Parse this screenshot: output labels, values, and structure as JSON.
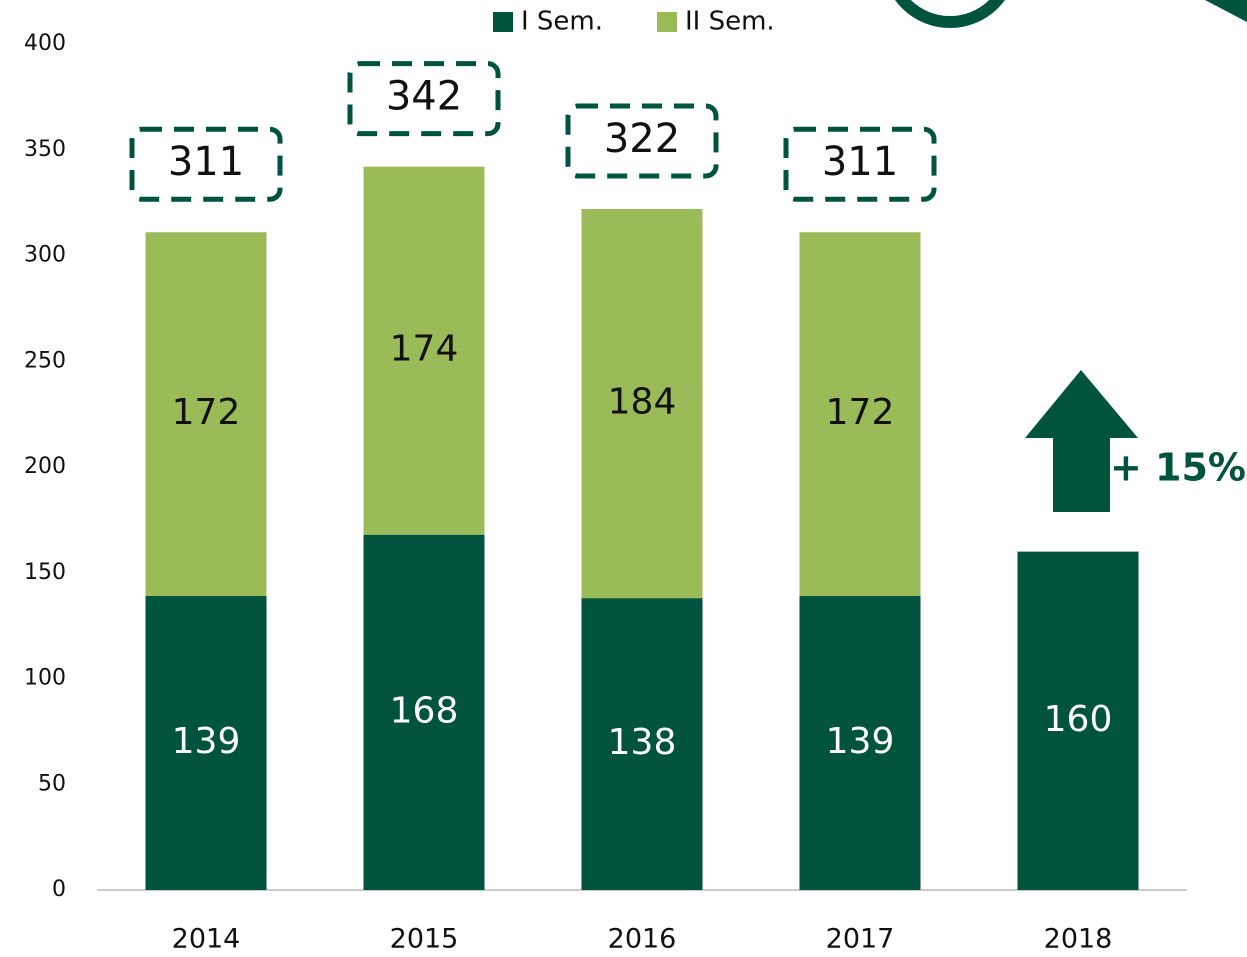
{
  "chart_data": {
    "type": "stacked_bar",
    "categories": [
      "2014",
      "2015",
      "2016",
      "2017",
      "2018"
    ],
    "series": [
      {
        "name": "I Sem.",
        "color": "#00533c",
        "values": [
          139,
          168,
          138,
          139,
          160
        ]
      },
      {
        "name": "II Sem.",
        "color": "#9bbb59",
        "values": [
          172,
          174,
          184,
          172,
          null
        ]
      }
    ],
    "totals": [
      311,
      342,
      322,
      311
    ],
    "annotation": "+ 15%",
    "ylim": [
      0,
      400
    ],
    "yticks": [
      0,
      50,
      100,
      150,
      200,
      250,
      300,
      350,
      400
    ],
    "grid": false,
    "legend": "top"
  }
}
